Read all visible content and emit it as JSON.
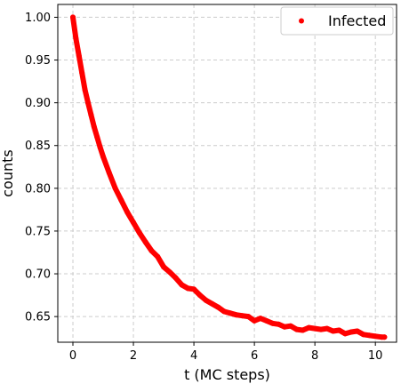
{
  "chart_data": {
    "type": "scatter",
    "xlabel": "t (MC steps)",
    "ylabel": "counts",
    "xlim": [
      -0.5,
      10.7
    ],
    "ylim": [
      0.62,
      1.015
    ],
    "xticks": [
      0,
      2,
      4,
      6,
      8,
      10
    ],
    "yticks": [
      0.65,
      0.7,
      0.75,
      0.8,
      0.85,
      0.9,
      0.95,
      1.0
    ],
    "xtick_labels": [
      "0",
      "2",
      "4",
      "6",
      "8",
      "10"
    ],
    "ytick_labels": [
      "0.65",
      "0.70",
      "0.75",
      "0.80",
      "0.85",
      "0.90",
      "0.95",
      "1.00"
    ],
    "grid": true,
    "legend_position": "top-right",
    "series": [
      {
        "name": "Infected",
        "color": "#ff0000",
        "marker": "dot",
        "x": [
          0,
          0.1,
          0.2,
          0.3,
          0.4,
          0.5,
          0.6,
          0.7,
          0.8,
          0.9,
          1.0,
          1.2,
          1.4,
          1.6,
          1.8,
          2.0,
          2.2,
          2.4,
          2.6,
          2.8,
          3.0,
          3.2,
          3.4,
          3.6,
          3.8,
          4.0,
          4.2,
          4.4,
          4.6,
          4.8,
          5.0,
          5.2,
          5.4,
          5.6,
          5.8,
          6.0,
          6.2,
          6.4,
          6.6,
          6.8,
          7.0,
          7.2,
          7.4,
          7.6,
          7.8,
          8.0,
          8.2,
          8.4,
          8.6,
          8.8,
          9.0,
          9.2,
          9.4,
          9.6,
          9.8,
          10.0,
          10.2,
          10.3
        ],
        "y": [
          1.0,
          0.975,
          0.955,
          0.935,
          0.915,
          0.9,
          0.886,
          0.872,
          0.86,
          0.848,
          0.837,
          0.818,
          0.8,
          0.786,
          0.772,
          0.76,
          0.748,
          0.737,
          0.727,
          0.72,
          0.708,
          0.702,
          0.695,
          0.687,
          0.683,
          0.682,
          0.675,
          0.669,
          0.665,
          0.661,
          0.656,
          0.654,
          0.652,
          0.651,
          0.65,
          0.645,
          0.648,
          0.645,
          0.642,
          0.641,
          0.638,
          0.639,
          0.635,
          0.634,
          0.637,
          0.636,
          0.635,
          0.636,
          0.633,
          0.634,
          0.63,
          0.632,
          0.633,
          0.629,
          0.628,
          0.627,
          0.626,
          0.626
        ]
      }
    ]
  }
}
